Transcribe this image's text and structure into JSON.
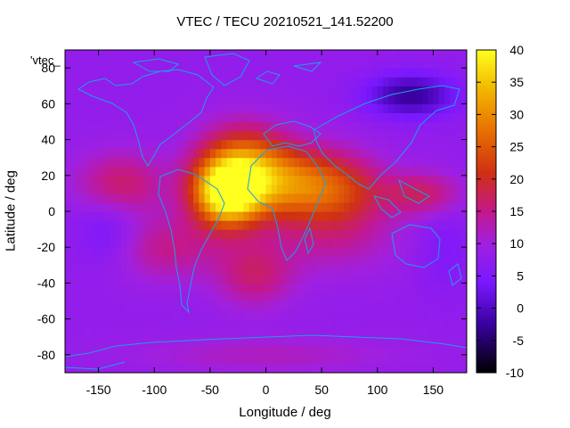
{
  "chart_data": {
    "type": "heatmap",
    "title": "VTEC / TECU 20210521_141.52200",
    "xlabel": "Longitude / deg",
    "ylabel": "Latitude / deg",
    "legend_entry": "'vtec_",
    "xlim": [
      -180,
      180
    ],
    "ylim": [
      -90,
      90
    ],
    "x_ticks": [
      -150,
      -100,
      -50,
      0,
      50,
      100,
      150
    ],
    "y_ticks": [
      -80,
      -60,
      -40,
      -20,
      0,
      20,
      40,
      60,
      80
    ],
    "colorbar": {
      "min": -10,
      "max": 40,
      "ticks": [
        -10,
        -5,
        0,
        5,
        10,
        15,
        20,
        25,
        30,
        35,
        40
      ]
    },
    "background_value": 8,
    "features": [
      {
        "lon": -35,
        "lat": 10,
        "value": 38,
        "rlon": 30,
        "rlat": 18
      },
      {
        "lon": -20,
        "lat": 25,
        "value": 27,
        "rlon": 40,
        "rlat": 22
      },
      {
        "lon": 25,
        "lat": 15,
        "value": 24,
        "rlon": 45,
        "rlat": 20
      },
      {
        "lon": 70,
        "lat": 12,
        "value": 18,
        "rlon": 40,
        "rlat": 20
      },
      {
        "lon": 140,
        "lat": 10,
        "value": 17,
        "rlon": 35,
        "rlat": 12
      },
      {
        "lon": -130,
        "lat": 15,
        "value": 17,
        "rlon": 40,
        "rlat": 18
      },
      {
        "lon": -10,
        "lat": -35,
        "value": 16,
        "rlon": 35,
        "rlat": 18
      },
      {
        "lon": -90,
        "lat": -20,
        "value": 15,
        "rlon": 50,
        "rlat": 18
      },
      {
        "lon": 60,
        "lat": -15,
        "value": 13,
        "rlon": 60,
        "rlat": 20
      },
      {
        "lon": 130,
        "lat": 65,
        "value": -3,
        "rlon": 40,
        "rlat": 12
      },
      {
        "lon": -140,
        "lat": -10,
        "value": 3,
        "rlon": 30,
        "rlat": 20
      },
      {
        "lon": 160,
        "lat": -20,
        "value": 5,
        "rlon": 25,
        "rlat": 25
      },
      {
        "lon": 0,
        "lat": -80,
        "value": 12,
        "rlon": 120,
        "rlat": 10
      }
    ],
    "coastline_color": "#1aa0e8"
  }
}
